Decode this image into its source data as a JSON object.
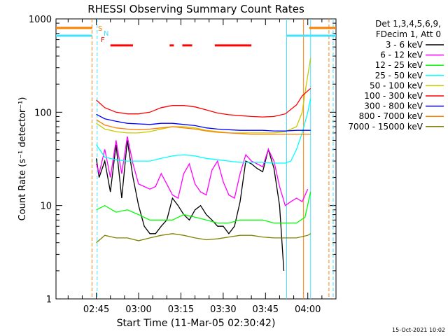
{
  "chart_data": {
    "type": "line",
    "title": "RHESSI Observing Summary Count Rates",
    "xlabel": "Start Time (11-Mar-05 02:30:42)",
    "ylabel": "Count Rate (s⁻¹ detector⁻¹)",
    "yscale": "log",
    "ylim": [
      1,
      1000
    ],
    "xlim": [
      "02:30:42",
      "04:10:00"
    ],
    "x_tick_labels": [
      "02:45",
      "03:00",
      "03:15",
      "03:30",
      "03:45",
      "04:00"
    ],
    "x_tick_minutes": [
      165,
      180,
      195,
      210,
      225,
      240
    ],
    "y_tick_labels": [
      "1",
      "10",
      "100",
      "1000"
    ],
    "y_tick_values": [
      1,
      10,
      100,
      1000
    ],
    "legend": {
      "position": "top-right",
      "header": [
        "Det 1,3,4,5,6,9,",
        "FDecim 1, Att 0"
      ]
    },
    "flags": {
      "S_label": "S",
      "N_label": "N",
      "F_label": "F",
      "S_segments": [
        [
          150.7,
          163.5
        ],
        [
          240.5,
          250
        ]
      ],
      "N_segments": [
        [
          150.7,
          163.5
        ],
        [
          232.5,
          240.5
        ],
        [
          240.5,
          250
        ]
      ],
      "F_segments": [
        [
          170,
          178
        ],
        [
          191,
          192.5
        ],
        [
          195.5,
          199
        ],
        [
          207,
          220
        ]
      ]
    },
    "vertical_markers": [
      {
        "minute": 163.5,
        "color": "#ff7f00",
        "style": "dashed"
      },
      {
        "minute": 165.3,
        "color": "#40e0ff",
        "style": "dashed"
      },
      {
        "minute": 232.5,
        "color": "#40e0ff",
        "style": "solid"
      },
      {
        "minute": 238.5,
        "color": "#ff7f00",
        "style": "solid"
      },
      {
        "minute": 241.0,
        "color": "#40e0ff",
        "style": "solid"
      },
      {
        "minute": 247.5,
        "color": "#ff7f00",
        "style": "dashed"
      },
      {
        "minute": 249.0,
        "color": "#40e0ff",
        "style": "dashed"
      }
    ],
    "series": [
      {
        "name": "3 - 6 keV",
        "color": "#000000",
        "x": [
          165,
          166,
          168,
          170,
          172,
          174,
          176,
          178,
          180,
          182,
          184,
          186,
          188,
          190,
          192,
          194,
          196,
          198,
          200,
          202,
          204,
          206,
          208,
          210,
          212,
          214,
          216,
          218,
          220,
          222,
          224,
          226,
          228,
          230,
          231.5
        ],
        "y": [
          32,
          20,
          30,
          14,
          45,
          12,
          50,
          20,
          10,
          6,
          5,
          5,
          6,
          7,
          12,
          10,
          8,
          7,
          9,
          10,
          8,
          7,
          6,
          6,
          5,
          6,
          11,
          30,
          28,
          25,
          23,
          40,
          25,
          10,
          2
        ]
      },
      {
        "name": "6 - 12 keV",
        "color": "#ff00ff",
        "x": [
          165,
          166,
          168,
          170,
          172,
          174,
          176,
          178,
          180,
          182,
          184,
          186,
          188,
          190,
          192,
          194,
          196,
          198,
          200,
          202,
          204,
          206,
          208,
          210,
          212,
          214,
          216,
          218,
          220,
          222,
          224,
          226,
          228,
          230,
          232,
          234,
          236,
          238,
          240
        ],
        "y": [
          28,
          22,
          40,
          20,
          50,
          22,
          55,
          28,
          17,
          16,
          15,
          16,
          22,
          17,
          13,
          12,
          22,
          28,
          17,
          14,
          13,
          24,
          30,
          18,
          13,
          12,
          22,
          35,
          30,
          28,
          26,
          40,
          30,
          16,
          10,
          11,
          12,
          11,
          15
        ]
      },
      {
        "name": "12 - 25 keV",
        "color": "#00ff00",
        "x": [
          165,
          168,
          172,
          176,
          180,
          184,
          188,
          192,
          196,
          200,
          204,
          208,
          212,
          216,
          220,
          224,
          228,
          232,
          236,
          239,
          241
        ],
        "y": [
          9,
          10,
          8.5,
          9,
          8,
          7,
          7,
          7,
          8,
          7.5,
          7,
          6.5,
          6.5,
          7,
          7,
          7,
          6.5,
          6.5,
          6.5,
          7.5,
          14
        ]
      },
      {
        "name": "25 - 50 keV",
        "color": "#00ffff",
        "x": [
          165,
          168,
          172,
          176,
          180,
          184,
          188,
          192,
          196,
          200,
          204,
          208,
          212,
          216,
          220,
          224,
          228,
          232,
          234,
          236,
          238,
          240,
          241
        ],
        "y": [
          45,
          33,
          31,
          30,
          30,
          30,
          32,
          34,
          35,
          34,
          32,
          31,
          30,
          29,
          29,
          29,
          28.5,
          28.5,
          30,
          40,
          60,
          100,
          140
        ]
      },
      {
        "name": "50 - 100 keV",
        "color": "#c8c800",
        "x": [
          165,
          168,
          172,
          176,
          180,
          184,
          188,
          192,
          196,
          200,
          204,
          208,
          212,
          216,
          220,
          224,
          228,
          232,
          236,
          238,
          239.5,
          241
        ],
        "y": [
          76,
          66,
          62,
          60,
          60,
          62,
          66,
          70,
          70,
          68,
          64,
          62,
          60,
          60,
          60,
          60,
          60,
          62,
          70,
          100,
          200,
          380
        ]
      },
      {
        "name": "100 - 300 keV",
        "color": "#ff0000",
        "x": [
          165,
          168,
          172,
          176,
          180,
          184,
          188,
          192,
          196,
          200,
          204,
          208,
          212,
          216,
          220,
          224,
          228,
          232,
          236,
          238,
          241
        ],
        "y": [
          135,
          112,
          100,
          96,
          96,
          100,
          112,
          118,
          118,
          114,
          106,
          98,
          94,
          92,
          90,
          89,
          90,
          96,
          120,
          150,
          180
        ]
      },
      {
        "name": "300 - 800 keV",
        "color": "#0000ff",
        "x": [
          165,
          168,
          172,
          176,
          180,
          184,
          188,
          192,
          196,
          200,
          204,
          208,
          212,
          216,
          220,
          224,
          228,
          232,
          236,
          241
        ],
        "y": [
          95,
          85,
          80,
          76,
          75,
          74,
          76,
          76,
          74,
          72,
          68,
          66,
          65,
          64,
          64,
          64,
          63,
          63,
          64,
          64
        ]
      },
      {
        "name": "800 - 7000 keV",
        "color": "#ff7f00",
        "x": [
          165,
          168,
          172,
          176,
          180,
          184,
          188,
          192,
          196,
          200,
          204,
          208,
          212,
          216,
          220,
          224,
          228,
          232,
          236,
          241
        ],
        "y": [
          83,
          73,
          68,
          66,
          65,
          66,
          68,
          70,
          68,
          66,
          63,
          61,
          60,
          59,
          58,
          58,
          58,
          58,
          58,
          58
        ]
      },
      {
        "name": "7000 - 15000 keV",
        "color": "#808000",
        "x": [
          165,
          168,
          172,
          176,
          180,
          184,
          188,
          192,
          196,
          200,
          204,
          208,
          212,
          216,
          220,
          224,
          228,
          232,
          236,
          240,
          241
        ],
        "y": [
          4,
          4.8,
          4.5,
          4.5,
          4.2,
          4.5,
          4.8,
          5,
          4.8,
          4.5,
          4.3,
          4.4,
          4.6,
          4.8,
          4.8,
          4.6,
          4.5,
          4.5,
          4.5,
          4.8,
          5
        ]
      }
    ]
  },
  "footer": {
    "timestamp": "15-Oct-2021 10:02"
  }
}
